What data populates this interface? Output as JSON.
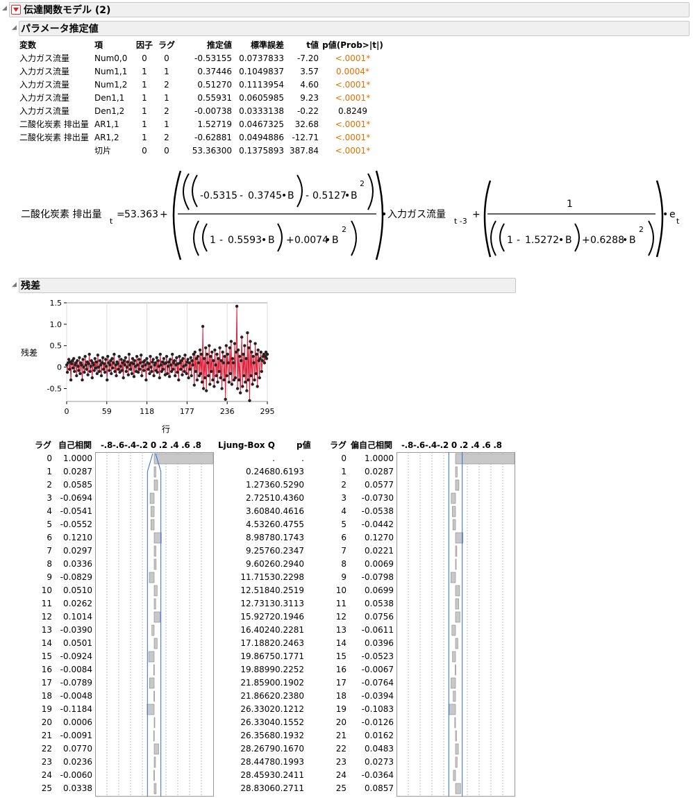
{
  "report": {
    "title": "伝達関数モデル (2)",
    "params_title": "パラメータ推定値",
    "residual_title": "残差"
  },
  "params": {
    "headers": [
      "変数",
      "項",
      "因子",
      "ラグ",
      "推定値",
      "標準誤差",
      "t値",
      "p値(Prob>|t|)"
    ],
    "rows": [
      [
        "入力ガス流量",
        "Num0,0",
        "0",
        "0",
        "-0.53155",
        "0.0737833",
        "-7.20",
        "<.0001*"
      ],
      [
        "入力ガス流量",
        "Num1,1",
        "1",
        "1",
        "0.37446",
        "0.1049837",
        "3.57",
        "0.0004*"
      ],
      [
        "入力ガス流量",
        "Num1,2",
        "1",
        "2",
        "0.51270",
        "0.1113954",
        "4.60",
        "<.0001*"
      ],
      [
        "入力ガス流量",
        "Den1,1",
        "1",
        "1",
        "0.55931",
        "0.0605985",
        "9.23",
        "<.0001*"
      ],
      [
        "入力ガス流量",
        "Den1,2",
        "1",
        "2",
        "-0.00738",
        "0.0333138",
        "-0.22",
        "0.8249"
      ],
      [
        "二酸化炭素 排出量",
        "AR1,1",
        "1",
        "1",
        "1.52719",
        "0.0467325",
        "32.68",
        "<.0001*"
      ],
      [
        "二酸化炭素 排出量",
        "AR1,2",
        "1",
        "2",
        "-0.62881",
        "0.0494886",
        "-12.71",
        "<.0001*"
      ],
      [
        "",
        "切片",
        "0",
        "0",
        "53.36300",
        "0.1375893",
        "387.84",
        "<.0001*"
      ]
    ]
  },
  "equation": {
    "lhs": "二酸化炭素 排出量",
    "sub_t": "t",
    "const": "53.363",
    "n1": "-0.5315",
    "n2": "0.3745",
    "n3": "0.5127",
    "d1": "0.5593",
    "d2": "0.0074",
    "input": "入力ガス流量",
    "input_sub": "t -3",
    "one": "1",
    "ar1": "1.5272",
    "ar2": "0.6288",
    "e": "e",
    "B": "B",
    "sq": "2"
  },
  "chart_data": {
    "type": "line",
    "ylabel": "残差",
    "xlabel": "行",
    "xlim": [
      0,
      295
    ],
    "ylim": [
      -0.8,
      1.5
    ],
    "xticks": [
      "0",
      "59",
      "118",
      "177",
      "236",
      "295"
    ],
    "yticks": [
      "1.5",
      "1.0",
      "0.5",
      "0",
      "-0.5"
    ],
    "series_color": "#e0203a",
    "point_color": "#222222",
    "y": [
      0.05,
      -0.12,
      0.1,
      0.18,
      -0.05,
      0.12,
      -0.3,
      0.08,
      0.15,
      -0.02,
      0.2,
      -0.1,
      0.05,
      0.1,
      -0.2,
      0.15,
      0.02,
      -0.08,
      0.22,
      -0.15,
      0.1,
      0.05,
      -0.3,
      0.18,
      0.0,
      -0.12,
      0.25,
      0.05,
      -0.05,
      0.12,
      -0.18,
      0.08,
      0.3,
      -0.1,
      0.02,
      0.15,
      -0.25,
      0.1,
      0.05,
      -0.08,
      0.2,
      -0.02,
      0.12,
      -0.15,
      0.28,
      0.0,
      -0.1,
      0.15,
      0.05,
      -0.2,
      0.1,
      0.22,
      -0.05,
      0.08,
      -0.12,
      0.18,
      0.02,
      -0.3,
      0.25,
      0.1,
      -0.08,
      0.05,
      0.15,
      -0.15,
      0.2,
      -0.02,
      0.1,
      0.3,
      -0.1,
      0.05,
      -0.2,
      0.12,
      0.08,
      -0.05,
      0.25,
      -0.12,
      0.02,
      0.18,
      -0.08,
      0.1,
      -0.25,
      0.15,
      0.05,
      0.22,
      -0.1,
      0.0,
      0.12,
      -0.18,
      0.3,
      0.05,
      -0.05,
      0.1,
      -0.15,
      0.2,
      0.08,
      -0.22,
      0.15,
      0.02,
      -0.1,
      0.25,
      0.05,
      -0.12,
      0.18,
      -0.05,
      0.1,
      0.28,
      -0.2,
      0.02,
      0.12,
      -0.08,
      0.15,
      0.05,
      -0.3,
      0.2,
      0.1,
      -0.05,
      0.08,
      -0.15,
      0.25,
      0.0,
      -0.1,
      0.12,
      0.18,
      -0.2,
      0.05,
      0.1,
      -0.08,
      0.22,
      -0.12,
      0.15,
      0.02,
      -0.25,
      0.3,
      0.05,
      -0.1,
      0.12,
      -0.05,
      0.2,
      0.08,
      -0.18,
      0.1,
      0.25,
      -0.15,
      0.02,
      0.12,
      -0.22,
      0.18,
      0.05,
      -0.1,
      0.3,
      -0.05,
      0.1,
      0.15,
      -0.2,
      0.05,
      0.22,
      -0.12,
      0.08,
      -0.3,
      0.25,
      0.1,
      -0.05,
      0.15,
      -0.18,
      0.2,
      0.02,
      -0.1,
      0.28,
      0.05,
      -0.15,
      0.12,
      0.18,
      -0.25,
      0.1,
      -0.05,
      0.22,
      -0.2,
      0.15,
      0.05,
      0.3,
      -0.42,
      0.35,
      -0.1,
      0.2,
      -0.3,
      0.25,
      0.1,
      -0.2,
      0.4,
      -0.15,
      0.3,
      -0.35,
      0.95,
      -0.5,
      0.2,
      -0.25,
      0.45,
      -0.55,
      0.3,
      0.1,
      -0.2,
      0.5,
      -0.4,
      0.25,
      -0.1,
      0.35,
      -0.3,
      0.15,
      -0.45,
      0.4,
      0.05,
      -0.2,
      0.3,
      -0.35,
      0.2,
      -0.1,
      0.45,
      -0.25,
      0.15,
      -0.5,
      0.35,
      0.1,
      -0.3,
      0.25,
      -0.75,
      0.5,
      -0.2,
      0.3,
      0.1,
      -0.35,
      0.45,
      -0.15,
      0.6,
      -0.4,
      0.2,
      0.1,
      -0.3,
      0.55,
      -0.25,
      0.35,
      1.42,
      -0.5,
      0.4,
      -0.3,
      0.25,
      -0.6,
      0.15,
      0.7,
      -0.45,
      0.3,
      -0.2,
      0.5,
      -0.35,
      0.2,
      -0.55,
      0.8,
      -0.3,
      0.45,
      -0.78,
      0.6,
      -0.2,
      0.35,
      -0.4,
      0.25,
      0.1,
      -0.3,
      0.55,
      -0.15,
      0.3,
      -0.45,
      0.4,
      0.15,
      -0.25,
      0.2,
      0.35,
      -0.1,
      0.15,
      0.25,
      0.3,
      0.1,
      0.25,
      0.35,
      0.2,
      0.3
    ]
  },
  "acf": {
    "headers": {
      "lag": "ラグ",
      "acf": "自己相関",
      "scale": "-.8-.6-.4-.2 0 .2 .4 .6 .8",
      "lb": "Ljung-Box Q",
      "p": "p値",
      "lag2": "ラグ",
      "pacf": "偏自己相関",
      "scale2": "-.8-.6-.4-.2 0 .2 .4 .6 .8"
    },
    "rows": [
      {
        "lag": "0",
        "acf": "1.0000",
        "lb": ".",
        "p": ".",
        "pacf": "1.0000"
      },
      {
        "lag": "1",
        "acf": "0.0287",
        "lb": "0.2468",
        "p": "0.6193",
        "pacf": "0.0287"
      },
      {
        "lag": "2",
        "acf": "0.0585",
        "lb": "1.2736",
        "p": "0.5290",
        "pacf": "0.0577"
      },
      {
        "lag": "3",
        "acf": "-0.0694",
        "lb": "2.7251",
        "p": "0.4360",
        "pacf": "-0.0730"
      },
      {
        "lag": "4",
        "acf": "-0.0541",
        "lb": "3.6084",
        "p": "0.4616",
        "pacf": "-0.0538"
      },
      {
        "lag": "5",
        "acf": "-0.0552",
        "lb": "4.5326",
        "p": "0.4755",
        "pacf": "-0.0442"
      },
      {
        "lag": "6",
        "acf": "0.1210",
        "lb": "8.9878",
        "p": "0.1743",
        "pacf": "0.1270"
      },
      {
        "lag": "7",
        "acf": "0.0297",
        "lb": "9.2576",
        "p": "0.2347",
        "pacf": "0.0221"
      },
      {
        "lag": "8",
        "acf": "0.0336",
        "lb": "9.6026",
        "p": "0.2940",
        "pacf": "0.0069"
      },
      {
        "lag": "9",
        "acf": "-0.0829",
        "lb": "11.7153",
        "p": "0.2298",
        "pacf": "-0.0798"
      },
      {
        "lag": "10",
        "acf": "0.0510",
        "lb": "12.5184",
        "p": "0.2519",
        "pacf": "0.0699"
      },
      {
        "lag": "11",
        "acf": "0.0262",
        "lb": "12.7313",
        "p": "0.3113",
        "pacf": "0.0538"
      },
      {
        "lag": "12",
        "acf": "0.1014",
        "lb": "15.9272",
        "p": "0.1946",
        "pacf": "0.0756"
      },
      {
        "lag": "13",
        "acf": "-0.0390",
        "lb": "16.4024",
        "p": "0.2281",
        "pacf": "-0.0611"
      },
      {
        "lag": "14",
        "acf": "0.0501",
        "lb": "17.1882",
        "p": "0.2463",
        "pacf": "0.0396"
      },
      {
        "lag": "15",
        "acf": "-0.0924",
        "lb": "19.8675",
        "p": "0.1771",
        "pacf": "-0.0523"
      },
      {
        "lag": "16",
        "acf": "-0.0084",
        "lb": "19.8899",
        "p": "0.2252",
        "pacf": "-0.0067"
      },
      {
        "lag": "17",
        "acf": "-0.0789",
        "lb": "21.8590",
        "p": "0.1902",
        "pacf": "-0.0764"
      },
      {
        "lag": "18",
        "acf": "-0.0048",
        "lb": "21.8662",
        "p": "0.2380",
        "pacf": "-0.0394"
      },
      {
        "lag": "19",
        "acf": "-0.1184",
        "lb": "26.3302",
        "p": "0.1212",
        "pacf": "-0.1083"
      },
      {
        "lag": "20",
        "acf": "0.0006",
        "lb": "26.3304",
        "p": "0.1552",
        "pacf": "-0.0126"
      },
      {
        "lag": "21",
        "acf": "-0.0091",
        "lb": "26.3568",
        "p": "0.1932",
        "pacf": "0.0162"
      },
      {
        "lag": "22",
        "acf": "0.0770",
        "lb": "28.2679",
        "p": "0.1670",
        "pacf": "0.0483"
      },
      {
        "lag": "23",
        "acf": "0.0236",
        "lb": "28.4478",
        "p": "0.1993",
        "pacf": "0.0273"
      },
      {
        "lag": "24",
        "acf": "-0.0060",
        "lb": "28.4593",
        "p": "0.2411",
        "pacf": "-0.0364"
      },
      {
        "lag": "25",
        "acf": "0.0338",
        "lb": "28.8306",
        "p": "0.2711",
        "pacf": "0.0857"
      }
    ]
  }
}
